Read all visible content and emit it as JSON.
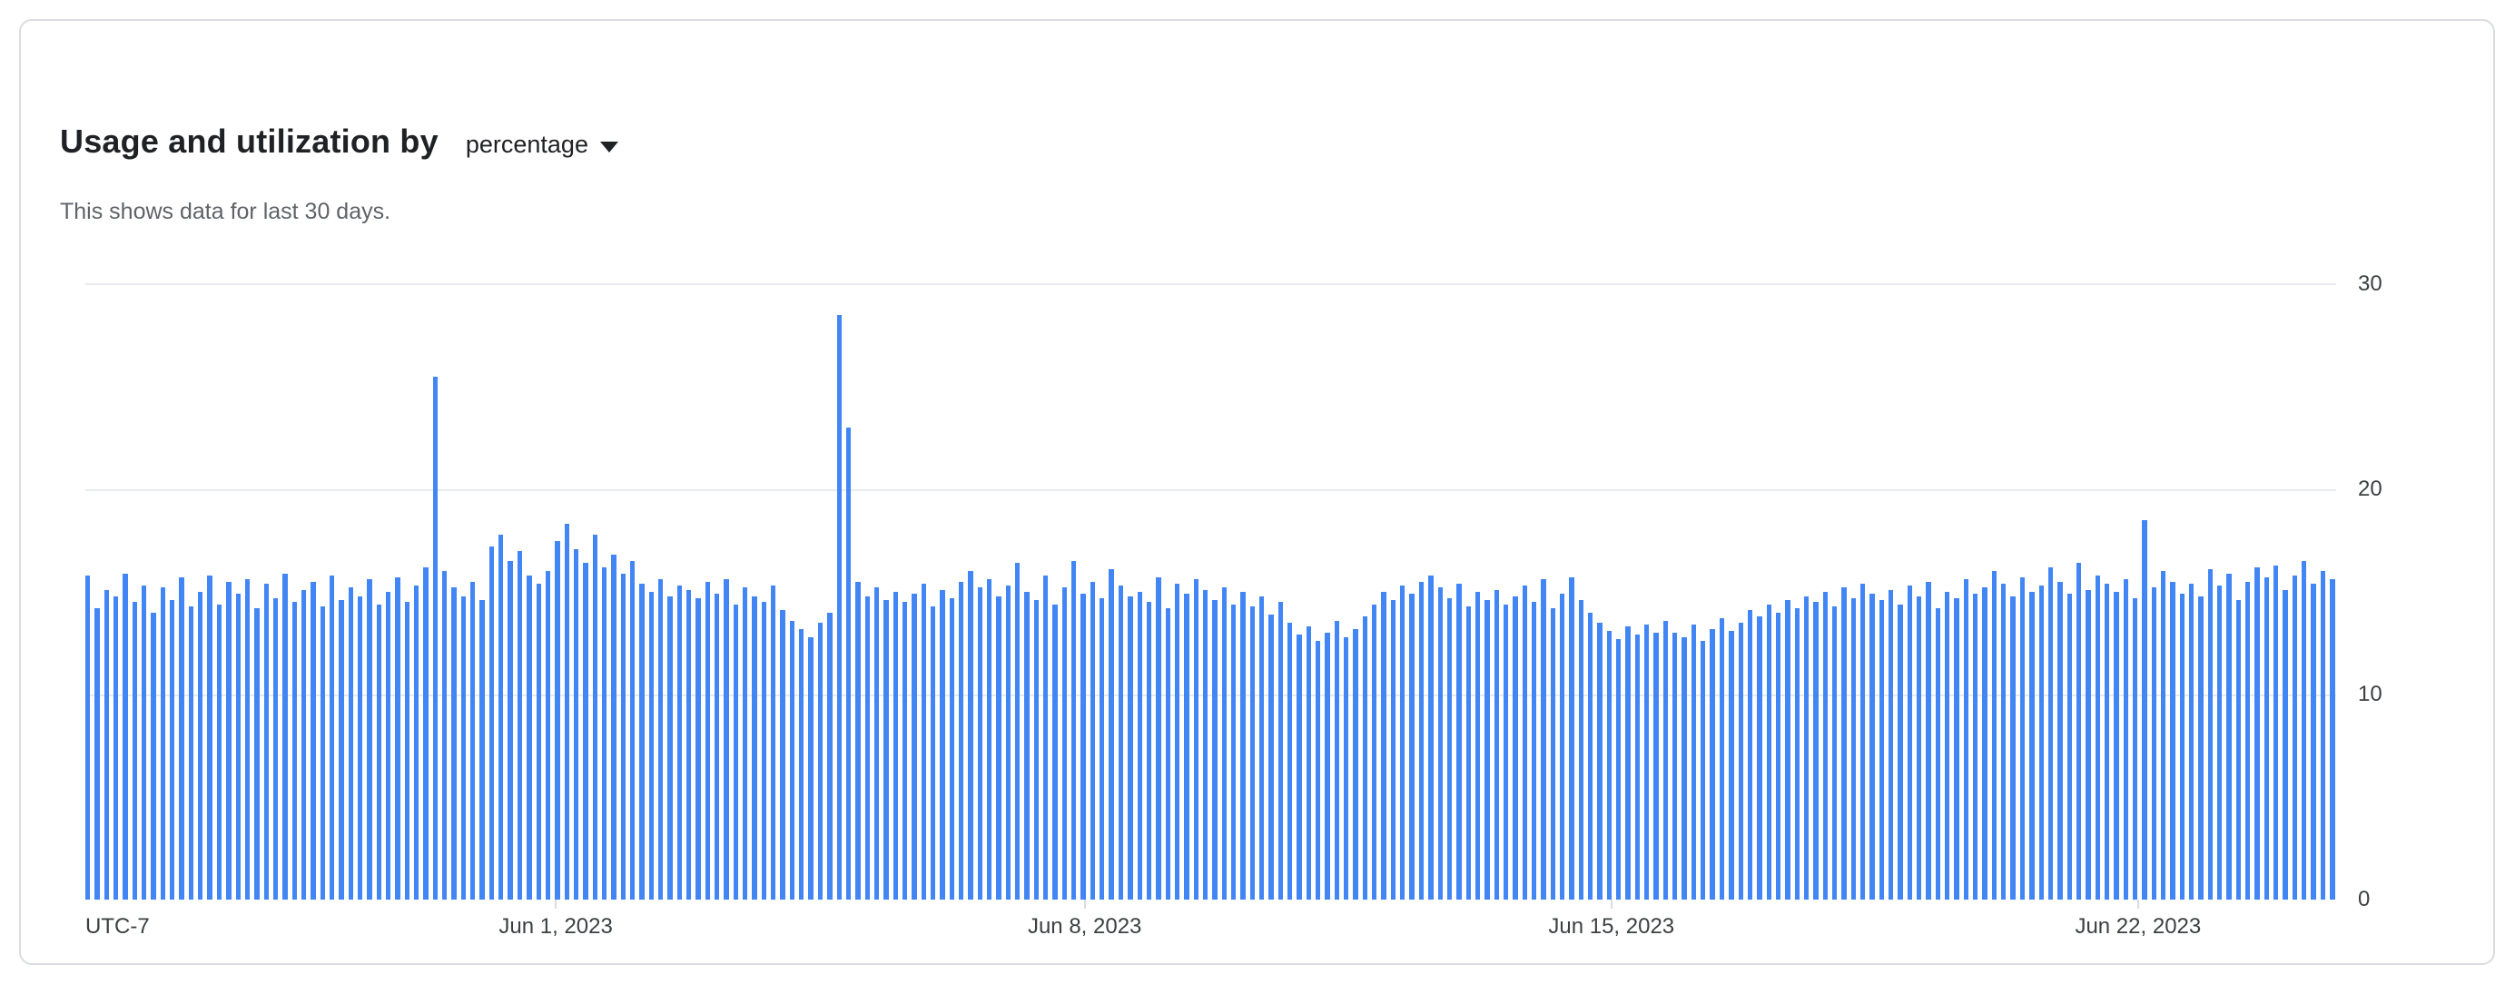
{
  "card": {
    "title": "Usage and utilization by",
    "metric_selector": {
      "value": "percentage"
    },
    "subtitle": "This shows data for last 30 days."
  },
  "colors": {
    "bar": "#4285f4",
    "gridline": "#e8eaed",
    "card_border": "#dadce0",
    "title_text": "#202124",
    "subtitle_text": "#5f6368",
    "axis_text": "#3c4043"
  },
  "chart_data": {
    "type": "bar",
    "title": "Usage and utilization by percentage",
    "subtitle": "This shows data for last 30 days.",
    "unit": "percent",
    "ylim": [
      0,
      30
    ],
    "y_ticks": [
      30,
      20,
      10,
      0
    ],
    "y_axis_side": "right",
    "grid": true,
    "legend": "none",
    "bar_color": "#4285f4",
    "timezone_label": "UTC-7",
    "x_ticks": [
      {
        "label": "Jun 1, 2023",
        "pct": 20.9
      },
      {
        "label": "Jun 8, 2023",
        "pct": 44.4
      },
      {
        "label": "Jun 15, 2023",
        "pct": 67.8
      },
      {
        "label": "Jun 22, 2023",
        "pct": 91.2
      }
    ],
    "values": [
      15.8,
      14.2,
      15.1,
      14.8,
      15.9,
      14.5,
      15.3,
      14.0,
      15.2,
      14.6,
      15.7,
      14.3,
      15.0,
      15.8,
      14.4,
      15.5,
      14.9,
      15.6,
      14.2,
      15.4,
      14.7,
      15.9,
      14.5,
      15.1,
      15.5,
      14.3,
      15.8,
      14.6,
      15.2,
      14.8,
      15.6,
      14.4,
      15.0,
      15.7,
      14.5,
      15.3,
      16.2,
      25.5,
      16.0,
      15.2,
      14.8,
      15.5,
      14.6,
      17.2,
      17.8,
      16.5,
      17.0,
      15.8,
      15.4,
      16.0,
      17.5,
      18.3,
      17.1,
      16.4,
      17.8,
      16.2,
      16.8,
      15.9,
      16.5,
      15.4,
      15.0,
      15.6,
      14.8,
      15.3,
      15.1,
      14.7,
      15.5,
      14.9,
      15.6,
      14.4,
      15.2,
      14.8,
      14.5,
      15.3,
      14.1,
      13.6,
      13.2,
      12.8,
      13.5,
      14.0,
      28.5,
      23.0,
      15.5,
      14.8,
      15.2,
      14.6,
      15.0,
      14.5,
      14.9,
      15.4,
      14.3,
      15.1,
      14.7,
      15.5,
      16.0,
      15.2,
      15.6,
      14.8,
      15.3,
      16.4,
      15.0,
      14.6,
      15.8,
      14.4,
      15.2,
      16.5,
      14.9,
      15.5,
      14.7,
      16.1,
      15.3,
      14.8,
      15.0,
      14.5,
      15.7,
      14.2,
      15.4,
      14.9,
      15.6,
      15.1,
      14.6,
      15.2,
      14.4,
      15.0,
      14.3,
      14.8,
      13.9,
      14.5,
      13.5,
      12.9,
      13.3,
      12.6,
      13.0,
      13.6,
      12.8,
      13.2,
      13.8,
      14.4,
      15.0,
      14.6,
      15.3,
      14.9,
      15.5,
      15.8,
      15.2,
      14.7,
      15.4,
      14.3,
      15.0,
      14.6,
      15.1,
      14.4,
      14.8,
      15.3,
      14.5,
      15.6,
      14.2,
      14.9,
      15.7,
      14.6,
      14.0,
      13.5,
      13.1,
      12.7,
      13.3,
      12.9,
      13.4,
      13.0,
      13.6,
      13.0,
      12.8,
      13.4,
      12.6,
      13.2,
      13.7,
      13.1,
      13.5,
      14.1,
      13.8,
      14.4,
      14.0,
      14.6,
      14.2,
      14.8,
      14.5,
      15.0,
      14.3,
      15.2,
      14.7,
      15.4,
      14.9,
      14.6,
      15.1,
      14.4,
      15.3,
      14.8,
      15.5,
      14.2,
      15.0,
      14.7,
      15.6,
      14.9,
      15.2,
      16.0,
      15.4,
      14.8,
      15.7,
      15.0,
      15.3,
      16.2,
      15.5,
      14.9,
      16.4,
      15.1,
      15.8,
      15.4,
      15.0,
      15.6,
      14.7,
      18.5,
      15.2,
      16.0,
      15.5,
      14.9,
      15.4,
      14.8,
      16.1,
      15.3,
      15.9,
      14.6,
      15.5,
      16.2,
      15.7,
      16.3,
      15.1,
      15.8,
      16.5,
      15.4,
      16.0,
      15.6
    ]
  }
}
